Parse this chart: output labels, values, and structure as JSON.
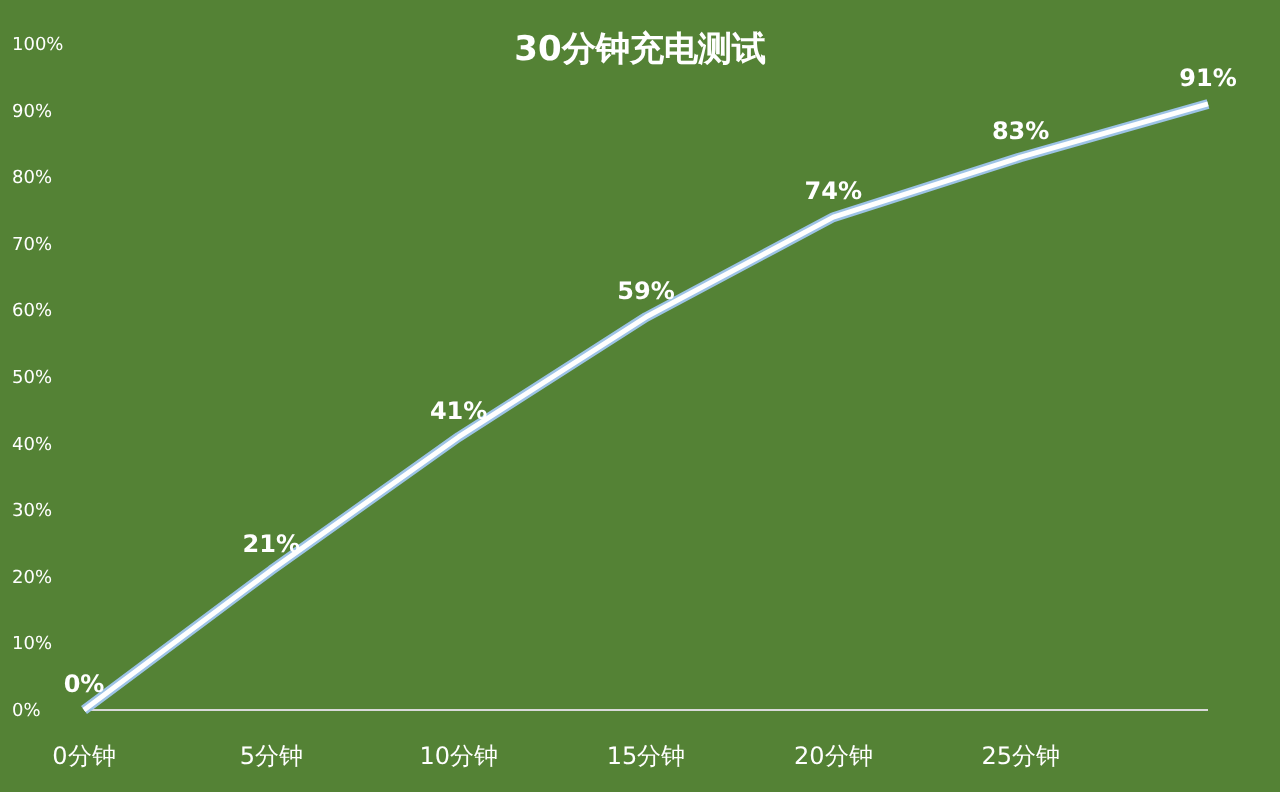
{
  "chart_data": {
    "type": "line",
    "title": "30分钟充电测试",
    "categories": [
      "0分钟",
      "5分钟",
      "10分钟",
      "15分钟",
      "20分钟",
      "25分钟",
      null
    ],
    "values": [
      0,
      21,
      41,
      59,
      74,
      83,
      91
    ],
    "value_labels": [
      "0%",
      "21%",
      "41%",
      "59%",
      "74%",
      "83%",
      "91%"
    ],
    "color": "#ffffff",
    "ylim": [
      0,
      100
    ],
    "yticks": [
      {
        "value": 0,
        "label": "0%"
      },
      {
        "value": 10,
        "label": "10%"
      },
      {
        "value": 20,
        "label": "20%"
      },
      {
        "value": 30,
        "label": "30%"
      },
      {
        "value": 40,
        "label": "40%"
      },
      {
        "value": 50,
        "label": "50%"
      },
      {
        "value": 60,
        "label": "60%"
      },
      {
        "value": 70,
        "label": "70%"
      },
      {
        "value": 80,
        "label": "80%"
      },
      {
        "value": 90,
        "label": "90%"
      },
      {
        "value": 100,
        "label": "100%"
      }
    ],
    "marker": "none"
  }
}
